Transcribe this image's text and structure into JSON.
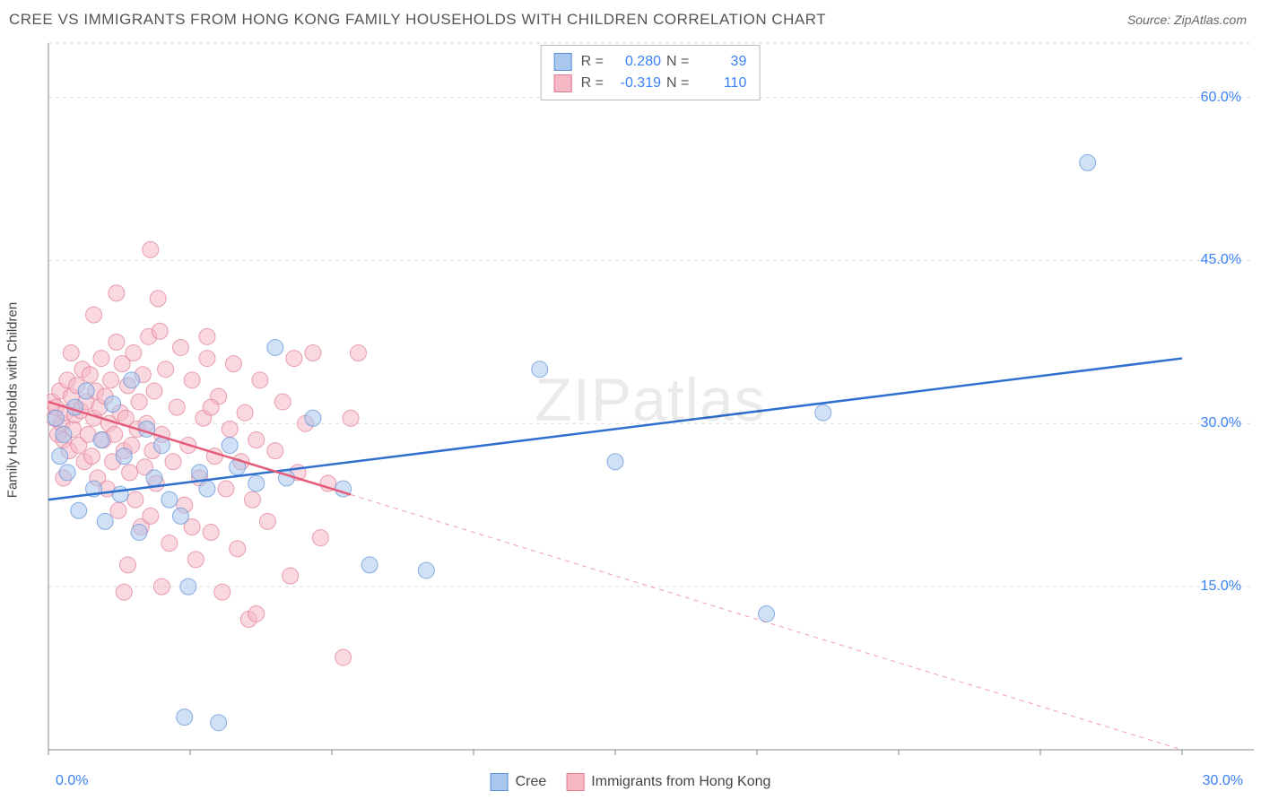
{
  "title": "CREE VS IMMIGRANTS FROM HONG KONG FAMILY HOUSEHOLDS WITH CHILDREN CORRELATION CHART",
  "source": "Source: ZipAtlas.com",
  "ylabel": "Family Households with Children",
  "watermark": "ZIPatlas",
  "legend_stats": {
    "series_a": {
      "r_label": "R =",
      "r_value": "0.280",
      "n_label": "N =",
      "n_value": "39"
    },
    "series_b": {
      "r_label": "R =",
      "r_value": "-0.319",
      "n_label": "N =",
      "n_value": "110"
    }
  },
  "bottom_legend": {
    "series_a": "Cree",
    "series_b": "Immigrants from Hong Kong"
  },
  "axes": {
    "x_min_label": "0.0%",
    "x_max_label": "30.0%",
    "x_min": 0.0,
    "x_max": 30.0,
    "y_min": 0.0,
    "y_max": 65.0,
    "y_ticks": [
      15.0,
      30.0,
      45.0,
      60.0
    ],
    "y_tick_labels": [
      "15.0%",
      "30.0%",
      "45.0%",
      "60.0%"
    ],
    "x_ticks": [
      0,
      3.75,
      7.5,
      11.25,
      15,
      18.75,
      22.5,
      26.25,
      30
    ]
  },
  "style": {
    "bg_color": "#ffffff",
    "grid_color": "#dcdcdc",
    "axis_line_color": "#888888",
    "tick_color": "#888888",
    "series_a_fill": "#a9c7ec",
    "series_a_stroke": "#5b8fd6",
    "series_a_line": "#2f6fd0",
    "series_b_fill": "#f5b8c4",
    "series_b_stroke": "#e07a91",
    "series_b_line": "#e65a7a",
    "marker_radius": 9,
    "marker_opacity": 0.55,
    "line_width": 2.5,
    "line_a_y0": 23.0,
    "line_a_y1": 36.0,
    "line_b_y0": 32.0,
    "line_b_y1": 0.0,
    "line_b_solid_until_x": 8.0
  },
  "series_a_points": [
    [
      0.2,
      30.5
    ],
    [
      0.4,
      29.0
    ],
    [
      0.5,
      25.5
    ],
    [
      0.7,
      31.5
    ],
    [
      0.8,
      22.0
    ],
    [
      1.0,
      33.0
    ],
    [
      1.2,
      24.0
    ],
    [
      1.4,
      28.5
    ],
    [
      1.5,
      21.0
    ],
    [
      1.7,
      31.8
    ],
    [
      1.9,
      23.5
    ],
    [
      2.0,
      27.0
    ],
    [
      2.2,
      34.0
    ],
    [
      2.4,
      20.0
    ],
    [
      2.6,
      29.5
    ],
    [
      2.8,
      25.0
    ],
    [
      3.0,
      28.0
    ],
    [
      3.2,
      23.0
    ],
    [
      3.5,
      21.5
    ],
    [
      3.7,
      15.0
    ],
    [
      4.0,
      25.5
    ],
    [
      4.2,
      24.0
    ],
    [
      4.5,
      2.5
    ],
    [
      4.8,
      28.0
    ],
    [
      5.0,
      26.0
    ],
    [
      5.5,
      24.5
    ],
    [
      6.0,
      37.0
    ],
    [
      6.3,
      25.0
    ],
    [
      7.0,
      30.5
    ],
    [
      7.8,
      24.0
    ],
    [
      8.5,
      17.0
    ],
    [
      10.0,
      16.5
    ],
    [
      3.6,
      3.0
    ],
    [
      13.0,
      35.0
    ],
    [
      15.0,
      26.5
    ],
    [
      19.0,
      12.5
    ],
    [
      20.5,
      31.0
    ],
    [
      27.5,
      54.0
    ],
    [
      0.3,
      27.0
    ]
  ],
  "series_b_points": [
    [
      0.1,
      32.0
    ],
    [
      0.15,
      30.5
    ],
    [
      0.2,
      31.5
    ],
    [
      0.25,
      29.0
    ],
    [
      0.3,
      33.0
    ],
    [
      0.35,
      30.0
    ],
    [
      0.4,
      28.5
    ],
    [
      0.45,
      31.0
    ],
    [
      0.5,
      34.0
    ],
    [
      0.55,
      27.5
    ],
    [
      0.6,
      32.5
    ],
    [
      0.65,
      29.5
    ],
    [
      0.7,
      30.8
    ],
    [
      0.75,
      33.5
    ],
    [
      0.8,
      28.0
    ],
    [
      0.85,
      31.2
    ],
    [
      0.9,
      35.0
    ],
    [
      0.95,
      26.5
    ],
    [
      1.0,
      32.0
    ],
    [
      1.05,
      29.0
    ],
    [
      1.1,
      34.5
    ],
    [
      1.15,
      27.0
    ],
    [
      1.2,
      30.5
    ],
    [
      1.25,
      33.0
    ],
    [
      1.3,
      25.0
    ],
    [
      1.35,
      31.5
    ],
    [
      1.4,
      36.0
    ],
    [
      1.45,
      28.5
    ],
    [
      1.5,
      32.5
    ],
    [
      1.55,
      24.0
    ],
    [
      1.6,
      30.0
    ],
    [
      1.65,
      34.0
    ],
    [
      1.7,
      26.5
    ],
    [
      1.75,
      29.0
    ],
    [
      1.8,
      37.5
    ],
    [
      1.85,
      22.0
    ],
    [
      1.9,
      31.0
    ],
    [
      1.95,
      35.5
    ],
    [
      2.0,
      27.5
    ],
    [
      2.05,
      30.5
    ],
    [
      2.1,
      33.5
    ],
    [
      2.15,
      25.5
    ],
    [
      2.2,
      28.0
    ],
    [
      2.25,
      36.5
    ],
    [
      2.3,
      23.0
    ],
    [
      2.35,
      29.5
    ],
    [
      2.4,
      32.0
    ],
    [
      2.45,
      20.5
    ],
    [
      2.5,
      34.5
    ],
    [
      2.55,
      26.0
    ],
    [
      2.6,
      30.0
    ],
    [
      2.65,
      38.0
    ],
    [
      2.7,
      21.5
    ],
    [
      2.75,
      27.5
    ],
    [
      2.8,
      33.0
    ],
    [
      2.9,
      41.5
    ],
    [
      2.85,
      24.5
    ],
    [
      3.0,
      29.0
    ],
    [
      3.1,
      35.0
    ],
    [
      3.2,
      19.0
    ],
    [
      3.3,
      26.5
    ],
    [
      3.4,
      31.5
    ],
    [
      3.5,
      37.0
    ],
    [
      3.6,
      22.5
    ],
    [
      3.7,
      28.0
    ],
    [
      3.8,
      34.0
    ],
    [
      3.9,
      17.5
    ],
    [
      4.0,
      25.0
    ],
    [
      4.1,
      30.5
    ],
    [
      4.2,
      36.0
    ],
    [
      4.3,
      20.0
    ],
    [
      4.4,
      27.0
    ],
    [
      4.5,
      32.5
    ],
    [
      4.6,
      14.5
    ],
    [
      4.7,
      24.0
    ],
    [
      4.8,
      29.5
    ],
    [
      4.9,
      35.5
    ],
    [
      5.0,
      18.5
    ],
    [
      5.1,
      26.5
    ],
    [
      5.2,
      31.0
    ],
    [
      5.3,
      12.0
    ],
    [
      5.4,
      23.0
    ],
    [
      5.5,
      28.5
    ],
    [
      5.6,
      34.0
    ],
    [
      5.8,
      21.0
    ],
    [
      6.0,
      27.5
    ],
    [
      6.2,
      32.0
    ],
    [
      6.4,
      16.0
    ],
    [
      6.6,
      25.5
    ],
    [
      6.8,
      30.0
    ],
    [
      7.0,
      36.5
    ],
    [
      7.2,
      19.5
    ],
    [
      7.4,
      24.5
    ],
    [
      2.7,
      46.0
    ],
    [
      1.8,
      42.0
    ],
    [
      2.95,
      38.5
    ],
    [
      7.8,
      8.5
    ],
    [
      3.0,
      15.0
    ],
    [
      2.0,
      14.5
    ],
    [
      4.3,
      31.5
    ],
    [
      5.5,
      12.5
    ],
    [
      6.5,
      36.0
    ],
    [
      8.0,
      30.5
    ],
    [
      8.2,
      36.5
    ],
    [
      4.2,
      38.0
    ],
    [
      3.8,
      20.5
    ],
    [
      2.1,
      17.0
    ],
    [
      1.2,
      40.0
    ],
    [
      0.6,
      36.5
    ],
    [
      0.4,
      25.0
    ]
  ]
}
